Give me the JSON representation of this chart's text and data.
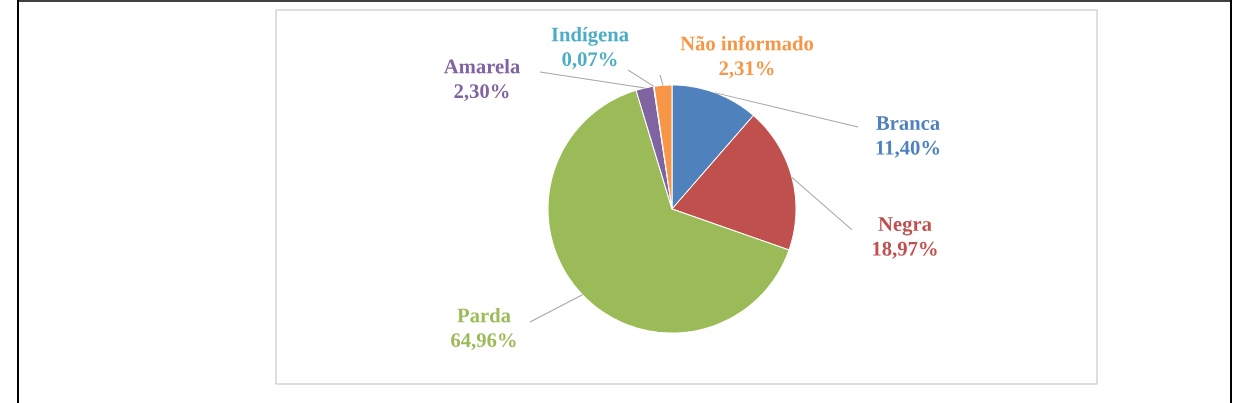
{
  "chart_data": {
    "type": "pie",
    "categories": [
      "Branca",
      "Negra",
      "Parda",
      "Amarela",
      "Indígena",
      "Não informado"
    ],
    "values": [
      11.4,
      18.97,
      64.96,
      2.3,
      0.07,
      2.31
    ],
    "value_labels": [
      "11,40%",
      "18,97%",
      "64,96%",
      "2,30%",
      "0,07%",
      "2,31%"
    ],
    "colors": [
      "#4f81bd",
      "#c0504d",
      "#9bbb59",
      "#8064a2",
      "#4bacc6",
      "#f79646"
    ]
  }
}
